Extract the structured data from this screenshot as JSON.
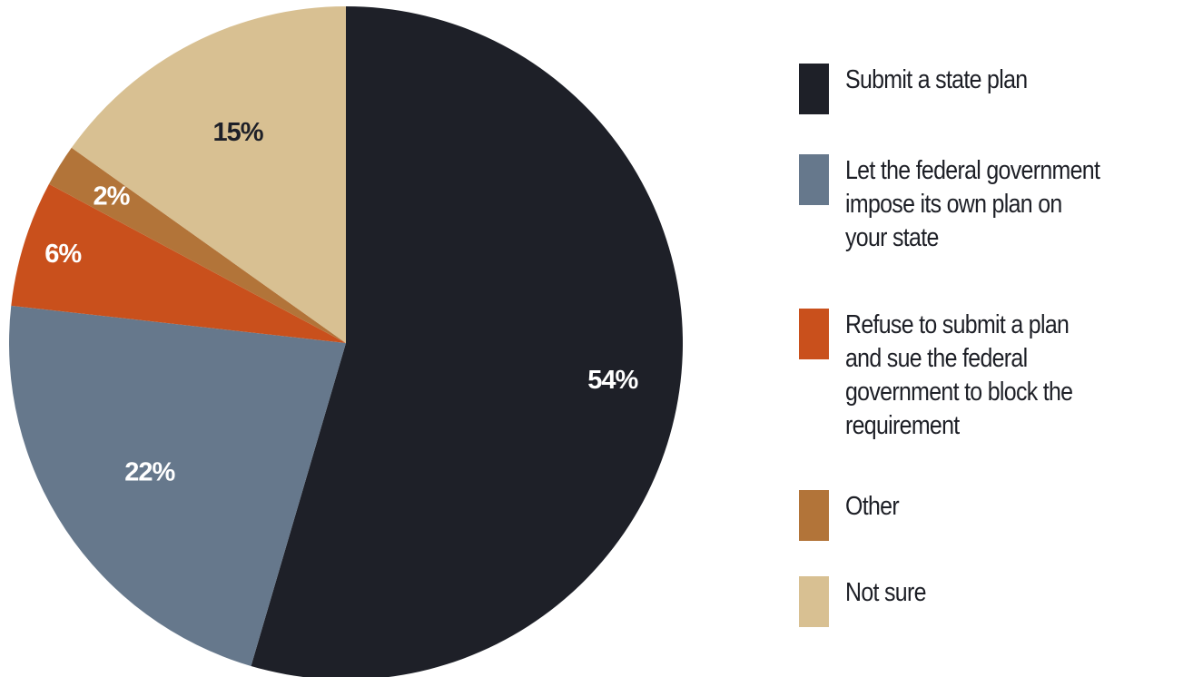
{
  "chart_data": {
    "type": "pie",
    "title": "",
    "slices": [
      {
        "label": "Submit a state plan",
        "value": 54,
        "display": "54%",
        "color": "#1e2028",
        "label_color": "#ffffff"
      },
      {
        "label": "Let the federal government impose its own plan on your state",
        "value": 22,
        "display": "22%",
        "color": "#66788c",
        "label_color": "#ffffff"
      },
      {
        "label": "Refuse to submit a plan and sue the federal government to block the requirement",
        "value": 6,
        "display": "6%",
        "color": "#c9501c",
        "label_color": "#ffffff"
      },
      {
        "label": "Other",
        "value": 2,
        "display": "2%",
        "color": "#b27439",
        "label_color": "#ffffff"
      },
      {
        "label": "Not sure",
        "value": 15,
        "display": "15%",
        "color": "#d8c092",
        "label_color": "#1e2028"
      }
    ],
    "start": "12 o'clock",
    "direction": "clockwise",
    "legend_position": "right"
  },
  "legend": {
    "items": [
      {
        "lines": [
          "Submit a state plan"
        ],
        "color": "#1e2028"
      },
      {
        "lines": [
          "Let the federal government",
          "impose its own plan on",
          "your state"
        ],
        "color": "#66788c"
      },
      {
        "lines": [
          "Refuse to submit a plan",
          "and sue the federal",
          "government to block the",
          "requirement"
        ],
        "color": "#c9501c"
      },
      {
        "lines": [
          "Other"
        ],
        "color": "#b27439"
      },
      {
        "lines": [
          "Not sure"
        ],
        "color": "#d8c092"
      }
    ]
  }
}
